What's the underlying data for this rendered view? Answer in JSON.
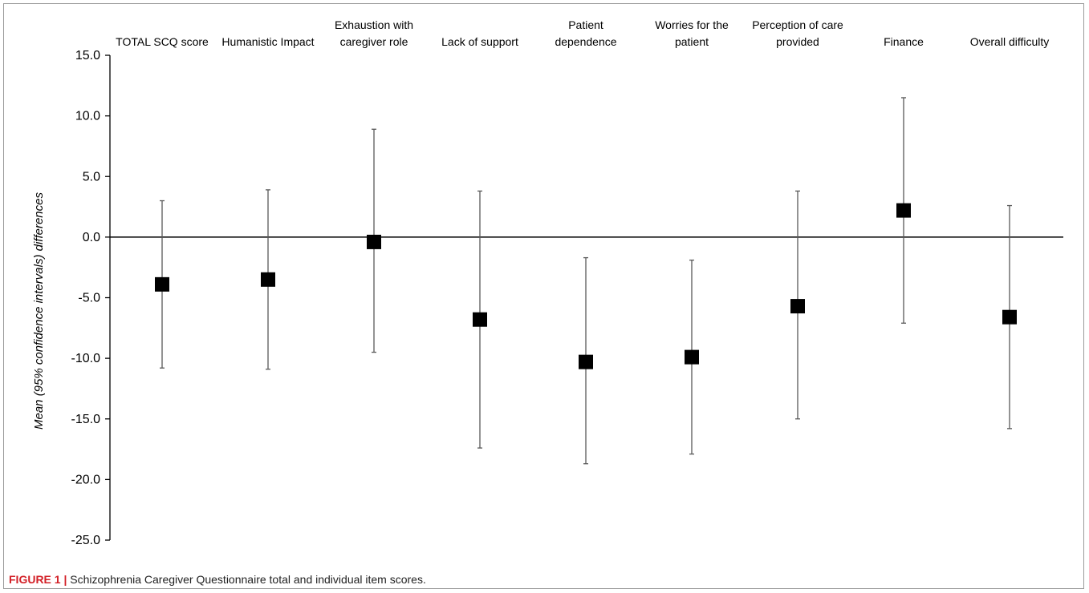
{
  "caption": {
    "label": "FIGURE 1",
    "separator": "|",
    "text": "Schizophrenia Caregiver Questionnaire total and individual item scores."
  },
  "colors": {
    "marker": "#000000",
    "whisker": "#595959",
    "axis": "#000000",
    "caption_label": "#d32027"
  },
  "chart_data": {
    "type": "scatter",
    "title": "",
    "xlabel": "",
    "ylabel": "Mean (95% confidence intervals) differences",
    "ylim": [
      -25,
      15
    ],
    "yticks": [
      15,
      10,
      5,
      0,
      -5,
      -10,
      -15,
      -20,
      -25
    ],
    "ytick_labels": [
      "15.0",
      "10.0",
      "5.0",
      "0.0",
      "-5.0",
      "-10.0",
      "-15.0",
      "-20.0",
      "-25.0"
    ],
    "grid": false,
    "legend": "none",
    "categories": [
      [
        "TOTAL SCQ score"
      ],
      [
        "Humanistic Impact"
      ],
      [
        "Exhaustion with",
        "caregiver role"
      ],
      [
        "Lack of support"
      ],
      [
        "Patient",
        "dependence"
      ],
      [
        "Worries for the",
        "patient"
      ],
      [
        "Perception of care",
        "provided"
      ],
      [
        "Finance"
      ],
      [
        "Overall difficulty"
      ]
    ],
    "series": [
      {
        "mean": [
          -3.9,
          -3.5,
          -0.4,
          -6.8,
          -10.3,
          -9.9,
          -5.7,
          2.2,
          -6.6
        ],
        "lower": [
          -10.8,
          -10.9,
          -9.5,
          -17.4,
          -18.7,
          -17.9,
          -15.0,
          -7.1,
          -15.8
        ],
        "upper": [
          3.0,
          3.9,
          8.9,
          3.8,
          -1.7,
          -1.9,
          3.8,
          11.5,
          2.6
        ]
      }
    ]
  }
}
